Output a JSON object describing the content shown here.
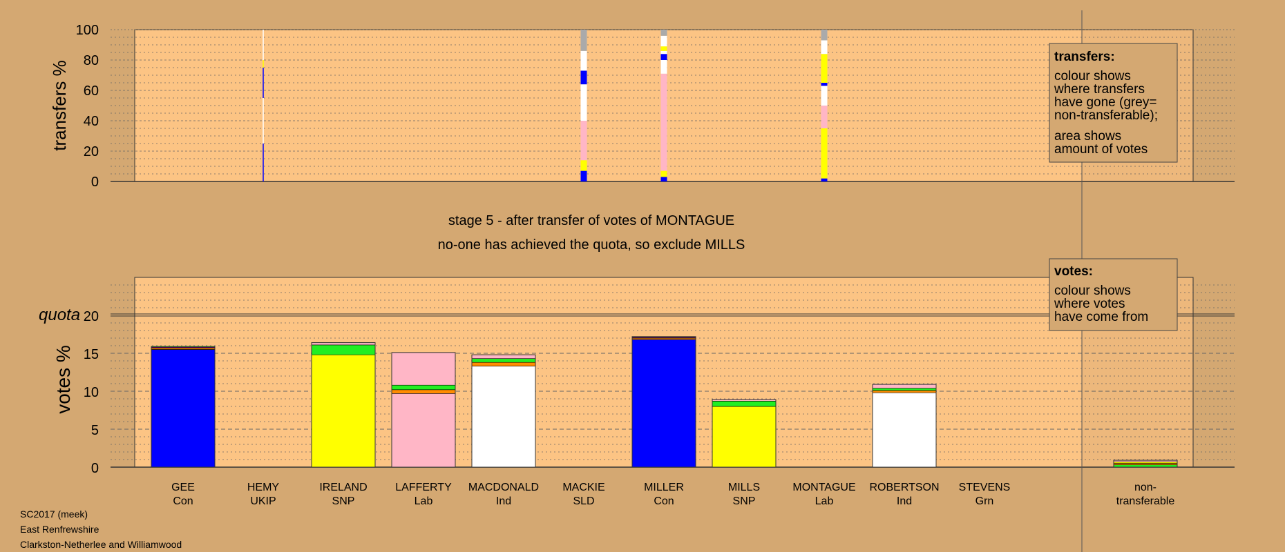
{
  "colors": {
    "background": "#d4a872",
    "plot_bg": "#fcc484",
    "Con": "#0000ff",
    "SNP": "#ffff00",
    "Lab": "#ffb6c6",
    "Ind": "#ffffff",
    "Grn": "#22ee22",
    "SLD": "#ff8c00",
    "UKIP": "#9900aa",
    "nontransferable": "#aaaaaa"
  },
  "legends": {
    "transfers": {
      "title": "transfers:",
      "lines1": [
        "colour shows",
        "where transfers",
        "have gone (grey=",
        "non-transferable);"
      ],
      "lines2": [
        "area shows",
        "amount of votes"
      ]
    },
    "votes": {
      "title": "votes:",
      "lines": [
        "colour shows",
        "where votes",
        "have come from"
      ]
    }
  },
  "stage_text": {
    "line1": "stage 5 - after transfer of votes of MONTAGUE",
    "line2": "no-one has achieved the quota, so exclude MILLS"
  },
  "footer": {
    "line1": "SC2017 (meek)",
    "line2": "East Renfrewshire",
    "line3": "Clarkston-Netherlee and Williamwood"
  },
  "chart_data": [
    {
      "type": "bar",
      "name": "transfers",
      "ylabel": "transfers %",
      "ylim": [
        0,
        100
      ],
      "yticks": [
        0,
        20,
        40,
        60,
        80,
        100
      ],
      "grid": true,
      "columns": [
        {
          "candidate": "HEMY",
          "segments": [
            {
              "party": "Con",
              "from": 0,
              "to": 25
            },
            {
              "party": "Ind",
              "from": 25,
              "to": 55
            },
            {
              "party": "Con",
              "from": 55,
              "to": 75
            },
            {
              "party": "SNP",
              "from": 75,
              "to": 80
            },
            {
              "party": "Ind",
              "from": 80,
              "to": 100
            }
          ]
        },
        {
          "candidate": "MACKIE",
          "segments": [
            {
              "party": "Con",
              "from": 0,
              "to": 7
            },
            {
              "party": "SNP",
              "from": 7,
              "to": 14
            },
            {
              "party": "Lab",
              "from": 14,
              "to": 40
            },
            {
              "party": "Ind",
              "from": 40,
              "to": 64
            },
            {
              "party": "Con",
              "from": 64,
              "to": 73
            },
            {
              "party": "Ind",
              "from": 73,
              "to": 86
            },
            {
              "party": "nontransferable",
              "from": 86,
              "to": 100
            }
          ]
        },
        {
          "candidate": "MILLER",
          "segments": [
            {
              "party": "Con",
              "from": 0,
              "to": 3
            },
            {
              "party": "SNP",
              "from": 3,
              "to": 7
            },
            {
              "party": "Lab",
              "from": 7,
              "to": 71
            },
            {
              "party": "Ind",
              "from": 71,
              "to": 80
            },
            {
              "party": "Con",
              "from": 80,
              "to": 84
            },
            {
              "party": "Ind",
              "from": 84,
              "to": 86
            },
            {
              "party": "SNP",
              "from": 86,
              "to": 89
            },
            {
              "party": "Ind",
              "from": 89,
              "to": 96
            },
            {
              "party": "nontransferable",
              "from": 96,
              "to": 100
            }
          ]
        },
        {
          "candidate": "MONTAGUE",
          "segments": [
            {
              "party": "Con",
              "from": 0,
              "to": 2
            },
            {
              "party": "SNP",
              "from": 2,
              "to": 35
            },
            {
              "party": "Lab",
              "from": 35,
              "to": 50
            },
            {
              "party": "Ind",
              "from": 50,
              "to": 63
            },
            {
              "party": "Con",
              "from": 63,
              "to": 65
            },
            {
              "party": "SNP",
              "from": 65,
              "to": 84
            },
            {
              "party": "Ind",
              "from": 84,
              "to": 93
            },
            {
              "party": "nontransferable",
              "from": 93,
              "to": 100
            }
          ]
        }
      ]
    },
    {
      "type": "bar",
      "name": "votes",
      "ylabel": "votes %",
      "ylim": [
        0,
        25
      ],
      "yticks": [
        0,
        5,
        10,
        15,
        20
      ],
      "quota": 20,
      "quota_label": "quota",
      "grid": true,
      "categories": [
        {
          "name": "GEE",
          "party": "Con"
        },
        {
          "name": "HEMY",
          "party": "UKIP"
        },
        {
          "name": "IRELAND",
          "party": "SNP"
        },
        {
          "name": "LAFFERTY",
          "party": "Lab"
        },
        {
          "name": "MACDONALD",
          "party": "Ind"
        },
        {
          "name": "MACKIE",
          "party": "SLD"
        },
        {
          "name": "MILLER",
          "party": "Con"
        },
        {
          "name": "MILLS",
          "party": "SNP"
        },
        {
          "name": "MONTAGUE",
          "party": "Lab"
        },
        {
          "name": "ROBERTSON",
          "party": "Ind"
        },
        {
          "name": "STEVENS",
          "party": "Grn"
        }
      ],
      "nontransferable_label": [
        "non-",
        "transferable"
      ],
      "bars": [
        {
          "candidate": "GEE",
          "segments": [
            {
              "party": "Con",
              "value": 15.5
            },
            {
              "party": "SLD",
              "value": 0.2
            },
            {
              "party": "UKIP",
              "value": 0.1
            },
            {
              "party": "Grn",
              "value": 0.1
            }
          ]
        },
        {
          "candidate": "HEMY",
          "segments": []
        },
        {
          "candidate": "IRELAND",
          "segments": [
            {
              "party": "SNP",
              "value": 14.8
            },
            {
              "party": "Grn",
              "value": 1.3
            },
            {
              "party": "Lab",
              "value": 0.3
            }
          ]
        },
        {
          "candidate": "LAFFERTY",
          "segments": [
            {
              "party": "Lab",
              "value": 9.7
            },
            {
              "party": "SLD",
              "value": 0.5
            },
            {
              "party": "Grn",
              "value": 0.6
            },
            {
              "party": "Lab",
              "value": 4.3
            }
          ]
        },
        {
          "candidate": "MACDONALD",
          "segments": [
            {
              "party": "Ind",
              "value": 13.3
            },
            {
              "party": "SLD",
              "value": 0.5
            },
            {
              "party": "Grn",
              "value": 0.5
            },
            {
              "party": "Lab",
              "value": 0.5
            }
          ]
        },
        {
          "candidate": "MACKIE",
          "segments": []
        },
        {
          "candidate": "MILLER",
          "segments": [
            {
              "party": "Con",
              "value": 16.8
            },
            {
              "party": "SLD",
              "value": 0.2
            },
            {
              "party": "UKIP",
              "value": 0.1
            },
            {
              "party": "Lab",
              "value": 0.1
            }
          ]
        },
        {
          "candidate": "MILLS",
          "segments": [
            {
              "party": "SNP",
              "value": 8.0
            },
            {
              "party": "Grn",
              "value": 0.7
            },
            {
              "party": "Lab",
              "value": 0.2
            }
          ]
        },
        {
          "candidate": "MONTAGUE",
          "segments": []
        },
        {
          "candidate": "ROBERTSON",
          "segments": [
            {
              "party": "Ind",
              "value": 9.8
            },
            {
              "party": "SLD",
              "value": 0.3
            },
            {
              "party": "Grn",
              "value": 0.3
            },
            {
              "party": "Lab",
              "value": 0.5
            }
          ]
        },
        {
          "candidate": "STEVENS",
          "segments": []
        }
      ],
      "nontransferable_segments": [
        {
          "party": "Grn",
          "value": 0.3
        },
        {
          "party": "SLD",
          "value": 0.2
        },
        {
          "party": "SNP",
          "value": 0.2
        },
        {
          "party": "Lab",
          "value": 0.2
        }
      ]
    }
  ]
}
